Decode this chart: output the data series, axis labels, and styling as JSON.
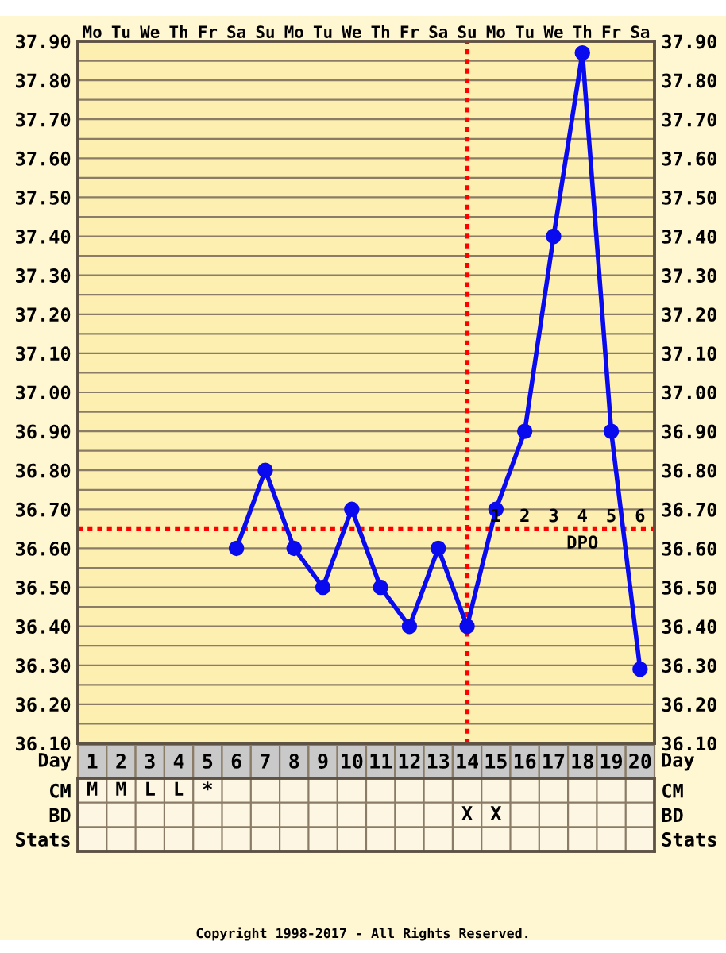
{
  "chart_data": [
    {
      "type": "line",
      "categories": [
        "1",
        "2",
        "3",
        "4",
        "5",
        "6",
        "7",
        "8",
        "9",
        "10",
        "11",
        "12",
        "13",
        "14",
        "15",
        "16",
        "17",
        "18",
        "19",
        "20"
      ],
      "xlabel": "Day",
      "series": [
        {
          "color": "#0a0aee",
          "values": [
            null,
            null,
            null,
            null,
            null,
            36.6,
            36.8,
            36.6,
            36.5,
            36.7,
            36.5,
            36.4,
            36.6,
            36.4,
            36.7,
            36.9,
            37.4,
            37.87,
            36.9,
            36.29
          ]
        }
      ],
      "ylim": [
        36.1,
        37.9
      ],
      "yticks": [
        {
          "value": 36.1,
          "label": "36.10"
        },
        {
          "value": 36.15,
          "label": null
        },
        {
          "value": 36.2,
          "label": "36.20"
        },
        {
          "value": 36.25,
          "label": null
        },
        {
          "value": 36.3,
          "label": "36.30"
        },
        {
          "value": 36.35,
          "label": null
        },
        {
          "value": 36.4,
          "label": "36.40"
        },
        {
          "value": 36.45,
          "label": null
        },
        {
          "value": 36.5,
          "label": "36.50"
        },
        {
          "value": 36.55,
          "label": null
        },
        {
          "value": 36.6,
          "label": "36.60"
        },
        {
          "value": 36.7,
          "label": "36.70"
        },
        {
          "value": 36.75,
          "label": null
        },
        {
          "value": 36.8,
          "label": "36.80"
        },
        {
          "value": 36.85,
          "label": null
        },
        {
          "value": 36.9,
          "label": "36.90"
        },
        {
          "value": 36.95,
          "label": null
        },
        {
          "value": 37.0,
          "label": "37.00"
        },
        {
          "value": 37.05,
          "label": null
        },
        {
          "value": 37.1,
          "label": "37.10"
        },
        {
          "value": 37.15,
          "label": null
        },
        {
          "value": 37.2,
          "label": "37.20"
        },
        {
          "value": 37.25,
          "label": null
        },
        {
          "value": 37.3,
          "label": "37.30"
        },
        {
          "value": 37.35,
          "label": null
        },
        {
          "value": 37.4,
          "label": "37.40"
        },
        {
          "value": 37.45,
          "label": null
        },
        {
          "value": 37.5,
          "label": "37.50"
        },
        {
          "value": 37.55,
          "label": null
        },
        {
          "value": 37.6,
          "label": "37.60"
        },
        {
          "value": 37.65,
          "label": null
        },
        {
          "value": 37.7,
          "label": "37.70"
        },
        {
          "value": 37.75,
          "label": null
        },
        {
          "value": 37.8,
          "label": "37.80"
        },
        {
          "value": 37.85,
          "label": null
        },
        {
          "value": 37.9,
          "label": "37.90"
        }
      ],
      "y2lim": [
        36.1,
        37.9
      ],
      "y2ticks": [
        {
          "value": 36.1,
          "label": "36.10"
        },
        {
          "value": 36.15,
          "label": null
        },
        {
          "value": 36.2,
          "label": "36.20"
        },
        {
          "value": 36.25,
          "label": null
        },
        {
          "value": 36.3,
          "label": "36.30"
        },
        {
          "value": 36.35,
          "label": null
        },
        {
          "value": 36.4,
          "label": "36.40"
        },
        {
          "value": 36.45,
          "label": null
        },
        {
          "value": 36.5,
          "label": "36.50"
        },
        {
          "value": 36.55,
          "label": null
        },
        {
          "value": 36.6,
          "label": "36.60"
        },
        {
          "value": 36.7,
          "label": "36.70"
        },
        {
          "value": 36.75,
          "label": null
        },
        {
          "value": 36.8,
          "label": "36.80"
        },
        {
          "value": 36.85,
          "label": null
        },
        {
          "value": 36.9,
          "label": "36.90"
        },
        {
          "value": 36.95,
          "label": null
        },
        {
          "value": 37.0,
          "label": "37.00"
        },
        {
          "value": 37.05,
          "label": null
        },
        {
          "value": 37.1,
          "label": "37.10"
        },
        {
          "value": 37.15,
          "label": null
        },
        {
          "value": 37.2,
          "label": "37.20"
        },
        {
          "value": 37.25,
          "label": null
        },
        {
          "value": 37.3,
          "label": "37.30"
        },
        {
          "value": 37.35,
          "label": null
        },
        {
          "value": 37.4,
          "label": "37.40"
        },
        {
          "value": 37.45,
          "label": null
        },
        {
          "value": 37.5,
          "label": "37.50"
        },
        {
          "value": 37.55,
          "label": null
        },
        {
          "value": 37.6,
          "label": "37.60"
        },
        {
          "value": 37.65,
          "label": null
        },
        {
          "value": 37.7,
          "label": "37.70"
        },
        {
          "value": 37.75,
          "label": null
        },
        {
          "value": 37.8,
          "label": "37.80"
        },
        {
          "value": 37.85,
          "label": null
        },
        {
          "value": 37.9,
          "label": "37.90"
        }
      ],
      "x2lim": [
        -13.5,
        6.5
      ],
      "x2ticks": [
        1,
        2,
        3,
        4,
        5,
        6
      ],
      "x2label": "DPO",
      "grid": true,
      "marker": "circle",
      "line_style": "solid",
      "ref_lines": [
        {
          "axis": "x",
          "value": "14",
          "color": "#ff0000",
          "line_style": "dotted"
        },
        {
          "axis": "y",
          "value": 36.65,
          "color": "#ff0000",
          "line_style": "dotted"
        }
      ],
      "annotations": [
        "Mo",
        "Tu",
        "We",
        "Th",
        "Fr",
        "Sa",
        "Su",
        "Mo",
        "Tu",
        "We",
        "Th",
        "Fr",
        "Sa",
        "Su",
        "Mo",
        "Tu",
        "We",
        "Th",
        "Fr",
        "Sa"
      ]
    },
    {
      "type": "heatmap",
      "categories": [
        null,
        null,
        null,
        null,
        null,
        null,
        null,
        null,
        null,
        null,
        null,
        null,
        null,
        null,
        null,
        null,
        null,
        null,
        null,
        null
      ],
      "y_categories": [
        "CM",
        "BD",
        "Stats"
      ],
      "y2_categories": [
        "CM",
        "BD",
        "Stats"
      ],
      "cells": [
        [
          null,
          null,
          null,
          null,
          null,
          null,
          null,
          null,
          null,
          null,
          null,
          null,
          null,
          null,
          null,
          null,
          null,
          null,
          null,
          null
        ],
        [
          null,
          null,
          null,
          null,
          null,
          null,
          null,
          null,
          null,
          null,
          null,
          null,
          null,
          null,
          null,
          null,
          null,
          null,
          null,
          null
        ],
        [
          null,
          null,
          null,
          null,
          null,
          null,
          null,
          null,
          null,
          null,
          null,
          null,
          null,
          null,
          null,
          null,
          null,
          null,
          null,
          null
        ]
      ],
      "cell_labels": [
        [
          "M",
          "M",
          "L",
          "L",
          "*",
          null,
          null,
          null,
          null,
          null,
          null,
          null,
          null,
          null,
          null,
          null,
          null,
          null,
          null,
          null
        ],
        [
          null,
          null,
          null,
          null,
          null,
          null,
          null,
          null,
          null,
          null,
          null,
          null,
          null,
          "X",
          "X",
          null,
          null,
          null,
          null,
          null
        ],
        [
          null,
          null,
          null,
          null,
          null,
          null,
          null,
          null,
          null,
          null,
          null,
          null,
          null,
          null,
          null,
          null,
          null,
          null,
          null,
          null
        ]
      ],
      "annotations": [
        "Copyright 1998-2017 - All Rights Reserved."
      ]
    }
  ]
}
